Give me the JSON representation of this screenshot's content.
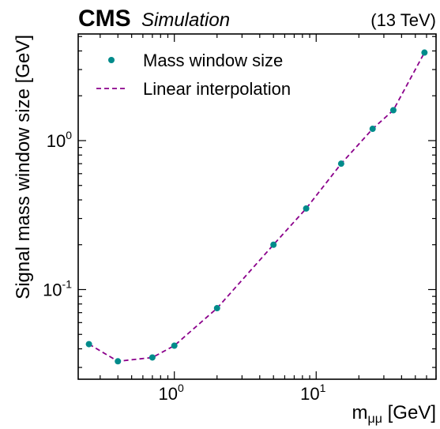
{
  "header": {
    "experiment": "CMS",
    "tag": "Simulation",
    "energy": "(13 TeV)"
  },
  "chart_data": {
    "type": "scatter",
    "xlabel": "m",
    "xlabel_subscript": "μμ",
    "xlabel_unit": "[GeV]",
    "ylabel": "Signal mass window size [GeV]",
    "xscale": "log",
    "yscale": "log",
    "xlim": [
      0.21,
      70
    ],
    "ylim": [
      0.025,
      5.2
    ],
    "x_tick_labels": [
      {
        "base": "10",
        "exp": "0",
        "value": 1
      },
      {
        "base": "10",
        "exp": "1",
        "value": 10
      }
    ],
    "y_tick_labels": [
      {
        "base": "10",
        "exp": "-1",
        "value": 0.1
      },
      {
        "base": "10",
        "exp": "0",
        "value": 1
      }
    ],
    "grid": false,
    "legend_position": "top-left",
    "series": [
      {
        "name": "Mass window size",
        "style": "markers",
        "color": "#008b8b",
        "x": [
          0.25,
          0.4,
          0.7,
          1.0,
          2.0,
          5.0,
          8.5,
          15,
          25,
          35,
          58
        ],
        "y": [
          0.043,
          0.033,
          0.035,
          0.042,
          0.075,
          0.2,
          0.35,
          0.7,
          1.2,
          1.6,
          3.9
        ]
      },
      {
        "name": "Linear interpolation",
        "style": "dashed-line",
        "color": "#8b008b",
        "x": [
          0.25,
          0.4,
          0.7,
          1.0,
          2.0,
          5.0,
          8.5,
          15,
          25,
          35,
          58
        ],
        "y": [
          0.043,
          0.033,
          0.035,
          0.042,
          0.075,
          0.2,
          0.35,
          0.7,
          1.2,
          1.6,
          3.9
        ]
      }
    ]
  }
}
